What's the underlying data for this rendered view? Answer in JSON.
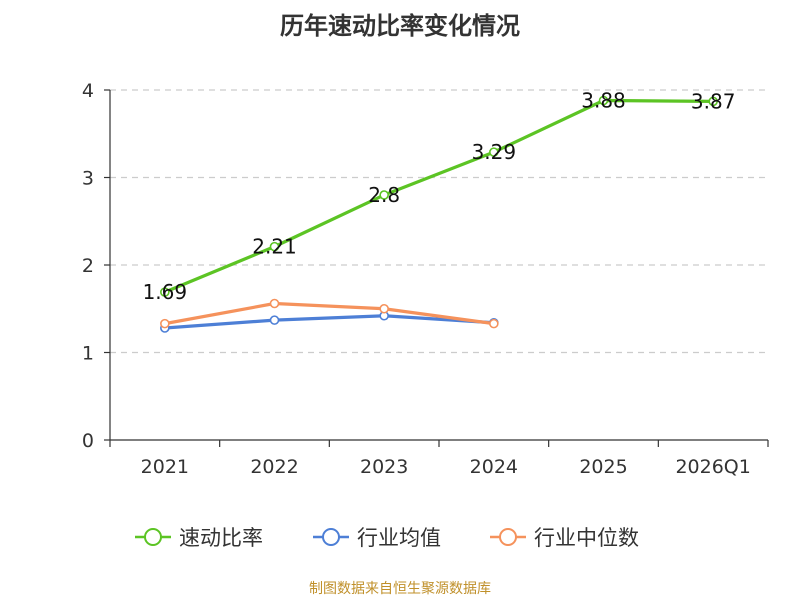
{
  "chart_data": {
    "type": "line",
    "title": "历年速动比率变化情况",
    "categories": [
      "2021",
      "2022",
      "2023",
      "2024",
      "2025",
      "2026Q1"
    ],
    "ylim": [
      0,
      4
    ],
    "yticks": [
      0,
      1,
      2,
      3,
      4
    ],
    "xlabel": "",
    "ylabel": "",
    "grid": true,
    "legend_position": "bottom",
    "series": [
      {
        "name": "速动比率",
        "color": "#5cc424",
        "values": [
          1.69,
          2.21,
          2.8,
          3.29,
          3.88,
          3.87
        ],
        "labels": [
          "1.69",
          "2.21",
          "2.8",
          "3.29",
          "3.88",
          "3.87"
        ]
      },
      {
        "name": "行业均值",
        "color": "#4d7fd6",
        "values": [
          1.28,
          1.37,
          1.42,
          1.34,
          null,
          null
        ]
      },
      {
        "name": "行业中位数",
        "color": "#f5925c",
        "values": [
          1.33,
          1.56,
          1.5,
          1.33,
          null,
          null
        ]
      }
    ]
  },
  "source": "制图数据来自恒生聚源数据库"
}
